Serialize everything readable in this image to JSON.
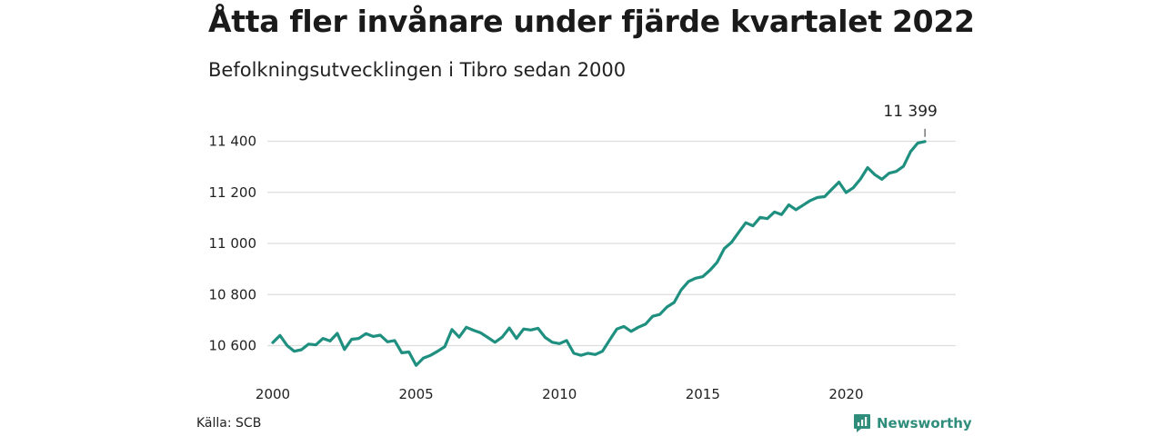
{
  "header": {
    "title": "Åtta fler invånare under fjärde kvartalet 2022",
    "subtitle": "Befolkningsutvecklingen i Tibro sedan 2000"
  },
  "footer": {
    "source": "Källa: SCB",
    "brand": "Newsworthy"
  },
  "colors": {
    "line": "#1f9080",
    "grid": "#dddddd",
    "brand": "#2f8d7b"
  },
  "icons": {
    "brand_logo": "newsworthy-logo-icon"
  },
  "chart_data": {
    "type": "line",
    "title": "Åtta fler invånare under fjärde kvartalet 2022",
    "subtitle": "Befolkningsutvecklingen i Tibro sedan 2000",
    "xlabel": "",
    "ylabel": "",
    "x_ticks": [
      "2000",
      "2005",
      "2010",
      "2015",
      "2020"
    ],
    "y_ticks": [
      10600,
      10800,
      11000,
      11200,
      11400
    ],
    "y_tick_labels": [
      "10 600",
      "10 800",
      "11 000",
      "11 200",
      "11 400"
    ],
    "xlim": [
      "2000-Q1",
      "2022-Q4"
    ],
    "ylim": [
      10520,
      11400
    ],
    "grid": "horizontal",
    "annotation": {
      "text": "11 399",
      "at": "2022-Q4",
      "value": 11399
    },
    "series": [
      {
        "x": [
          "2000-Q1",
          "2000-Q2",
          "2000-Q3",
          "2000-Q4",
          "2001-Q1",
          "2001-Q2",
          "2001-Q3",
          "2001-Q4",
          "2002-Q1",
          "2002-Q2",
          "2002-Q3",
          "2002-Q4",
          "2003-Q1",
          "2003-Q2",
          "2003-Q3",
          "2003-Q4",
          "2004-Q1",
          "2004-Q2",
          "2004-Q3",
          "2004-Q4",
          "2005-Q1",
          "2005-Q2",
          "2005-Q3",
          "2005-Q4",
          "2006-Q1",
          "2006-Q2",
          "2006-Q3",
          "2006-Q4",
          "2007-Q1",
          "2007-Q2",
          "2007-Q3",
          "2007-Q4",
          "2008-Q1",
          "2008-Q2",
          "2008-Q3",
          "2008-Q4",
          "2009-Q1",
          "2009-Q2",
          "2009-Q3",
          "2009-Q4",
          "2010-Q1",
          "2010-Q2",
          "2010-Q3",
          "2010-Q4",
          "2011-Q1",
          "2011-Q2",
          "2011-Q3",
          "2011-Q4",
          "2012-Q1",
          "2012-Q2",
          "2012-Q3",
          "2012-Q4",
          "2013-Q1",
          "2013-Q2",
          "2013-Q3",
          "2013-Q4",
          "2014-Q1",
          "2014-Q2",
          "2014-Q3",
          "2014-Q4",
          "2015-Q1",
          "2015-Q2",
          "2015-Q3",
          "2015-Q4",
          "2016-Q1",
          "2016-Q2",
          "2016-Q3",
          "2016-Q4",
          "2017-Q1",
          "2017-Q2",
          "2017-Q3",
          "2017-Q4",
          "2018-Q1",
          "2018-Q2",
          "2018-Q3",
          "2018-Q4",
          "2019-Q1",
          "2019-Q2",
          "2019-Q3",
          "2019-Q4",
          "2020-Q1",
          "2020-Q2",
          "2020-Q3",
          "2020-Q4",
          "2021-Q1",
          "2021-Q2",
          "2021-Q3",
          "2021-Q4",
          "2022-Q1",
          "2022-Q2",
          "2022-Q3",
          "2022-Q4"
        ],
        "values": [
          10612,
          10640,
          10600,
          10578,
          10584,
          10606,
          10603,
          10628,
          10618,
          10648,
          10585,
          10625,
          10628,
          10647,
          10636,
          10641,
          10615,
          10620,
          10572,
          10575,
          10523,
          10551,
          10562,
          10578,
          10596,
          10663,
          10633,
          10672,
          10660,
          10650,
          10632,
          10613,
          10633,
          10669,
          10628,
          10665,
          10661,
          10668,
          10632,
          10613,
          10608,
          10620,
          10570,
          10562,
          10570,
          10565,
          10578,
          10622,
          10665,
          10675,
          10656,
          10672,
          10684,
          10715,
          10722,
          10751,
          10769,
          10819,
          10851,
          10864,
          10870,
          10895,
          10926,
          10980,
          11004,
          11043,
          11081,
          11069,
          11102,
          11097,
          11123,
          11113,
          11151,
          11132,
          11150,
          11168,
          11180,
          11183,
          11212,
          11240,
          11199,
          11218,
          11252,
          11297,
          11269,
          11251,
          11275,
          11282,
          11302,
          11360,
          11393,
          11399
        ]
      }
    ]
  }
}
